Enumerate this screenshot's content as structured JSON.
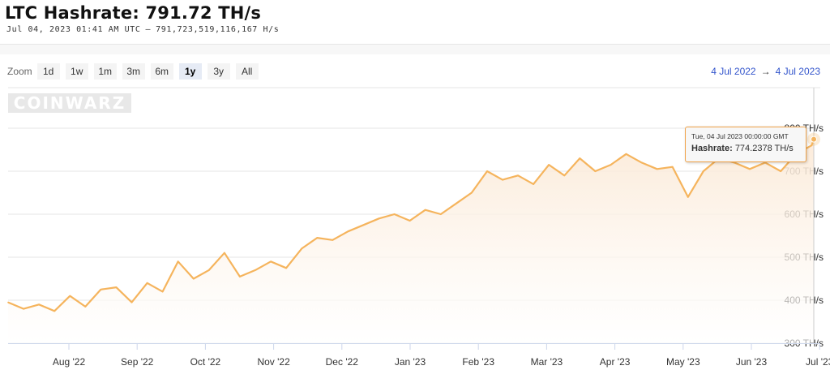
{
  "header": {
    "title": "LTC Hashrate: 791.72 TH/s",
    "timestamp": "Jul 04, 2023 01:41 AM UTC",
    "separator": "–",
    "raw_value": "791,723,519,116,167 H/s"
  },
  "zoom": {
    "label": "Zoom",
    "buttons": [
      "1d",
      "1w",
      "1m",
      "3m",
      "6m",
      "1y",
      "3y",
      "All"
    ],
    "active": "1y"
  },
  "range": {
    "from": "4 Jul 2022",
    "arrow": "→",
    "to": "4 Jul 2023"
  },
  "watermark": "COINWARZ",
  "tooltip": {
    "date": "Tue, 04 Jul 2023 00:00:00 GMT",
    "label": "Hashrate:",
    "value": "774.2378 TH/s"
  },
  "colors": {
    "line": "#f5b45d",
    "fill_top": "#fbe9d6",
    "fill_bottom": "#ffffff",
    "link": "#3355cc"
  },
  "chart_data": {
    "type": "area",
    "ylabel": "",
    "ylim": [
      300,
      800
    ],
    "y_ticks": [
      {
        "value": 300,
        "label": "300 TH/s"
      },
      {
        "value": 400,
        "label": "400 TH/s"
      },
      {
        "value": 500,
        "label": "500 TH/s"
      },
      {
        "value": 600,
        "label": "600 TH/s"
      },
      {
        "value": 700,
        "label": "700 TH/s"
      },
      {
        "value": 800,
        "label": "800 TH/s"
      }
    ],
    "x_ticks": [
      "Aug '22",
      "Sep '22",
      "Oct '22",
      "Nov '22",
      "Dec '22",
      "Jan '23",
      "Feb '23",
      "Mar '23",
      "Apr '23",
      "May '23",
      "Jun '23",
      "Jul '23"
    ],
    "grid": true,
    "series": [
      {
        "dates": [
          "2022-07-04",
          "2022-07-11",
          "2022-07-18",
          "2022-07-25",
          "2022-08-01",
          "2022-08-08",
          "2022-08-15",
          "2022-08-22",
          "2022-08-29",
          "2022-09-05",
          "2022-09-12",
          "2022-09-19",
          "2022-09-26",
          "2022-10-03",
          "2022-10-10",
          "2022-10-17",
          "2022-10-24",
          "2022-10-31",
          "2022-11-07",
          "2022-11-14",
          "2022-11-21",
          "2022-11-28",
          "2022-12-05",
          "2022-12-12",
          "2022-12-19",
          "2022-12-26",
          "2023-01-02",
          "2023-01-09",
          "2023-01-16",
          "2023-01-23",
          "2023-01-30",
          "2023-02-06",
          "2023-02-13",
          "2023-02-20",
          "2023-02-27",
          "2023-03-06",
          "2023-03-13",
          "2023-03-20",
          "2023-03-27",
          "2023-04-03",
          "2023-04-10",
          "2023-04-17",
          "2023-04-24",
          "2023-05-01",
          "2023-05-08",
          "2023-05-15",
          "2023-05-22",
          "2023-05-29",
          "2023-06-05",
          "2023-06-12",
          "2023-06-19",
          "2023-06-26",
          "2023-07-03",
          "2023-07-04"
        ],
        "values": [
          395,
          380,
          390,
          375,
          410,
          385,
          425,
          430,
          395,
          440,
          420,
          490,
          450,
          470,
          510,
          455,
          470,
          490,
          475,
          520,
          545,
          540,
          560,
          575,
          590,
          600,
          585,
          610,
          600,
          625,
          650,
          700,
          680,
          690,
          670,
          715,
          690,
          730,
          700,
          715,
          740,
          720,
          705,
          710,
          640,
          700,
          730,
          720,
          705,
          720,
          700,
          740,
          760,
          774.2378
        ]
      }
    ]
  }
}
